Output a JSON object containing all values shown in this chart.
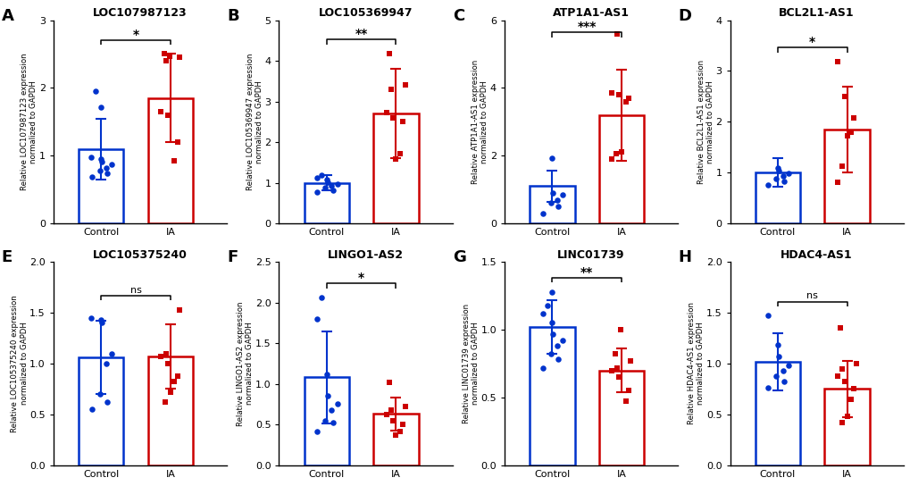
{
  "panels": [
    {
      "label": "A",
      "title": "LOC107987123",
      "ylabel": "Relative LOC107987123 expression\nnormalized to GAPDH",
      "ylim": [
        0,
        3
      ],
      "yticks": [
        0,
        1,
        2,
        3
      ],
      "control_mean": 1.1,
      "control_sd": 0.45,
      "ia_mean": 1.85,
      "ia_sd": 0.65,
      "control_points": [
        0.69,
        0.74,
        0.78,
        0.82,
        0.87,
        0.91,
        0.95,
        0.98,
        1.95,
        1.72
      ],
      "ia_points": [
        0.93,
        1.2,
        1.6,
        1.65,
        2.4,
        2.45,
        2.5,
        2.47
      ],
      "significance": "*"
    },
    {
      "label": "B",
      "title": "LOC105369947",
      "ylabel": "Relative LOC105369947 expression\nnormalized to GAPDH",
      "ylim": [
        0,
        5
      ],
      "yticks": [
        0,
        1,
        2,
        3,
        4,
        5
      ],
      "control_mean": 1.0,
      "control_sd": 0.18,
      "ia_mean": 2.7,
      "ia_sd": 1.1,
      "control_points": [
        0.78,
        0.82,
        0.88,
        0.92,
        0.98,
        1.02,
        1.08,
        1.12,
        1.18
      ],
      "ia_points": [
        1.58,
        1.72,
        2.5,
        2.6,
        2.72,
        3.3,
        3.4,
        4.18
      ],
      "significance": "**"
    },
    {
      "label": "C",
      "title": "ATP1A1-AS1",
      "ylabel": "Relative ATP1A1-AS1 expression\nnormalized to GAPDH",
      "ylim": [
        0,
        6
      ],
      "yticks": [
        0,
        2,
        4,
        6
      ],
      "control_mean": 1.1,
      "control_sd": 0.45,
      "ia_mean": 3.2,
      "ia_sd": 1.35,
      "control_points": [
        0.3,
        0.5,
        0.6,
        0.7,
        0.85,
        0.9,
        1.92
      ],
      "ia_points": [
        1.9,
        2.05,
        2.12,
        3.6,
        3.7,
        3.8,
        3.85,
        5.58
      ],
      "significance": "***"
    },
    {
      "label": "D",
      "title": "BCL2L1-AS1",
      "ylabel": "Relative BCL2L1-AS1 expression\nnormalized to GAPDH",
      "ylim": [
        0,
        4
      ],
      "yticks": [
        0,
        1,
        2,
        3,
        4
      ],
      "control_mean": 1.0,
      "control_sd": 0.28,
      "ia_mean": 1.85,
      "ia_sd": 0.85,
      "control_points": [
        0.76,
        0.83,
        0.88,
        0.93,
        0.98,
        1.04,
        1.1
      ],
      "ia_points": [
        0.82,
        1.12,
        1.72,
        1.8,
        2.08,
        2.5,
        3.18
      ],
      "significance": "*"
    },
    {
      "label": "E",
      "title": "LOC105375240",
      "ylabel": "Relative LOC105375240 expression\nnormalized to GAPDH",
      "ylim": [
        0,
        2.0
      ],
      "yticks": [
        0.0,
        0.5,
        1.0,
        1.5,
        2.0
      ],
      "control_mean": 1.06,
      "control_sd": 0.36,
      "ia_mean": 1.07,
      "ia_sd": 0.32,
      "control_points": [
        0.55,
        0.62,
        0.7,
        1.0,
        1.1,
        1.4,
        1.43,
        1.45
      ],
      "ia_points": [
        0.62,
        0.72,
        0.82,
        0.88,
        1.0,
        1.07,
        1.1,
        1.53
      ],
      "significance": "ns"
    },
    {
      "label": "F",
      "title": "LINGO1-AS2",
      "ylabel": "Relative LINGO1-AS2 expression\nnormalized to GAPDH",
      "ylim": [
        0,
        2.5
      ],
      "yticks": [
        0.0,
        0.5,
        1.0,
        1.5,
        2.0,
        2.5
      ],
      "control_mean": 1.08,
      "control_sd": 0.57,
      "ia_mean": 0.63,
      "ia_sd": 0.2,
      "control_points": [
        0.42,
        0.52,
        0.55,
        0.68,
        0.75,
        0.85,
        1.12,
        1.8,
        2.06
      ],
      "ia_points": [
        0.37,
        0.42,
        0.5,
        0.55,
        0.62,
        0.68,
        0.72,
        1.02
      ],
      "significance": "*"
    },
    {
      "label": "G",
      "title": "LINC01739",
      "ylabel": "Relative LINC01739 expression\nnormalized to GAPDH",
      "ylim": [
        0,
        1.5
      ],
      "yticks": [
        0.0,
        0.5,
        1.0,
        1.5
      ],
      "control_mean": 1.02,
      "control_sd": 0.2,
      "ia_mean": 0.7,
      "ia_sd": 0.16,
      "control_points": [
        0.72,
        0.78,
        0.82,
        0.88,
        0.92,
        0.97,
        1.05,
        1.12,
        1.18,
        1.28
      ],
      "ia_points": [
        0.47,
        0.55,
        0.65,
        0.7,
        0.72,
        0.77,
        0.82,
        1.0
      ],
      "significance": "**"
    },
    {
      "label": "H",
      "title": "HDAC4-AS1",
      "ylabel": "Relative HDAC4-AS1 expression\nnormalized to GAPDH",
      "ylim": [
        0,
        2.0
      ],
      "yticks": [
        0.0,
        0.5,
        1.0,
        1.5,
        2.0
      ],
      "control_mean": 1.02,
      "control_sd": 0.28,
      "ia_mean": 0.75,
      "ia_sd": 0.28,
      "control_points": [
        0.76,
        0.82,
        0.88,
        0.93,
        0.98,
        1.07,
        1.18,
        1.47
      ],
      "ia_points": [
        0.42,
        0.48,
        0.65,
        0.75,
        0.82,
        0.88,
        0.95,
        1.0,
        1.35
      ],
      "significance": "ns"
    }
  ],
  "control_color": "#0033CC",
  "ia_color": "#CC0000",
  "point_size": 22,
  "bar_linewidth": 1.8,
  "errorbar_linewidth": 1.5,
  "background_color": "#FFFFFF"
}
